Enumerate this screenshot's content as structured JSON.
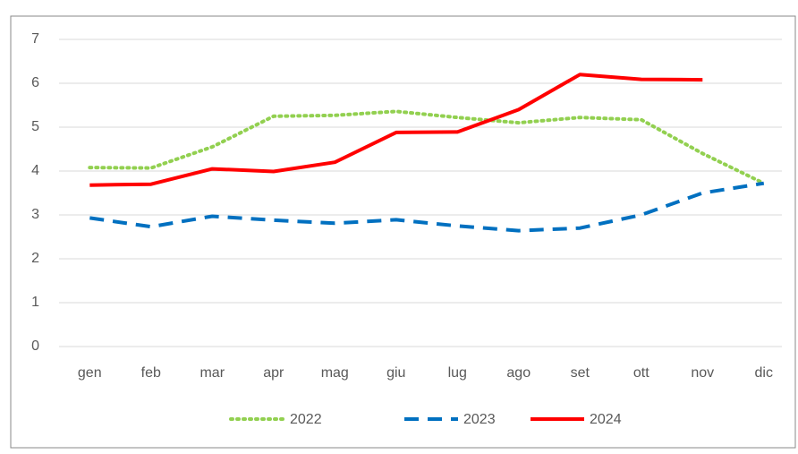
{
  "chart_data": {
    "type": "line",
    "categories": [
      "gen",
      "feb",
      "mar",
      "apr",
      "mag",
      "giu",
      "lug",
      "ago",
      "set",
      "ott",
      "nov",
      "dic"
    ],
    "series": [
      {
        "name": "2022",
        "color": "#92d050",
        "style": "dotted",
        "values": [
          4.08,
          4.07,
          4.55,
          5.25,
          5.27,
          5.36,
          5.22,
          5.1,
          5.22,
          5.17,
          4.4,
          3.72
        ]
      },
      {
        "name": "2023",
        "color": "#0070c0",
        "style": "dashed",
        "values": [
          2.93,
          2.73,
          2.97,
          2.88,
          2.81,
          2.89,
          2.75,
          2.64,
          2.7,
          3.0,
          3.5,
          3.72
        ]
      },
      {
        "name": "2024",
        "color": "#ff0000",
        "style": "solid",
        "values": [
          3.68,
          3.7,
          4.05,
          3.99,
          4.2,
          4.88,
          4.89,
          5.4,
          6.2,
          6.09,
          6.08,
          null
        ]
      }
    ],
    "ylim": [
      0,
      7
    ],
    "yticks": [
      0,
      1,
      2,
      3,
      4,
      5,
      6,
      7
    ],
    "grid": true,
    "legend": "bottom"
  }
}
